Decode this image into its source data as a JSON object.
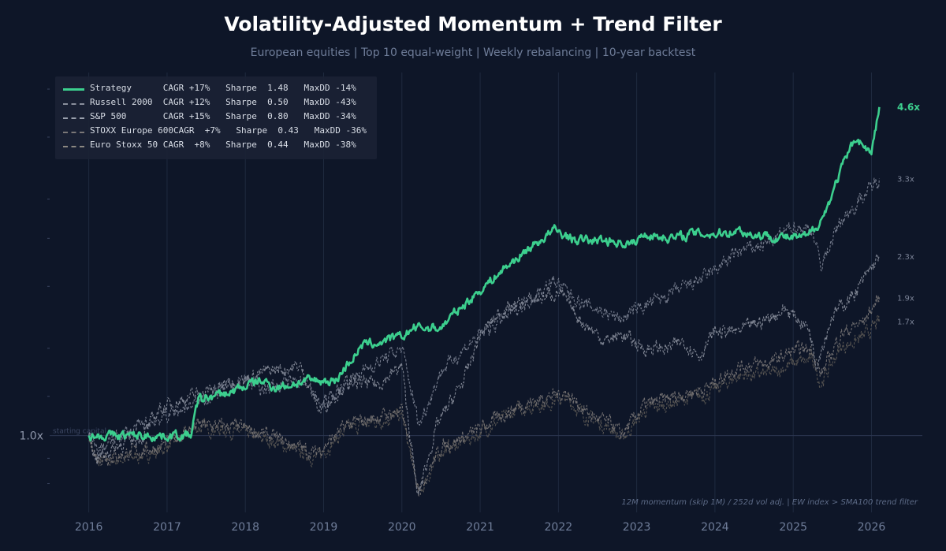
{
  "title": "Volatility-Adjusted Momentum + Trend Filter",
  "subtitle": "European equities  |  Top 10 equal-weight  |  Weekly rebalancing  |  10-year backtest",
  "note": "12M momentum (skip 1M) / 252d vol adj.  |  EW index > SMA100 trend filter",
  "colors": {
    "background": "#0e1628",
    "strategy": "#3ccf8e",
    "grid": "#1f2a3f",
    "muted": "#6f7d99"
  },
  "chart_data": {
    "type": "line",
    "y_scale": "log",
    "xlim": [
      2015.5,
      2026.65
    ],
    "ylim": [
      0.7,
      5.4
    ],
    "x_ticks": [
      2016,
      2017,
      2018,
      2019,
      2020,
      2021,
      2022,
      2023,
      2024,
      2025,
      2026
    ],
    "x_tick_labels": [
      "2016",
      "2017",
      "2018",
      "2019",
      "2020",
      "2021",
      "2022",
      "2023",
      "2024",
      "2025",
      "2026"
    ],
    "baseline": {
      "value": 1.0,
      "label": "1.0x",
      "annotation": "starting capital"
    },
    "series": [
      {
        "name": "Strategy",
        "style": "solid",
        "color": "#3ccf8e",
        "end_label": "4.6x",
        "legend": "Strategy      CAGR +17%   Sharpe  1.48   MaxDD -14%",
        "x": [
          2016.0,
          2017.0,
          2017.3,
          2017.4,
          2017.8,
          2018.0,
          2018.2,
          2018.4,
          2018.8,
          2019.15,
          2019.3,
          2019.5,
          2019.7,
          2020.0,
          2020.15,
          2020.5,
          2020.7,
          2020.9,
          2021.2,
          2021.5,
          2021.8,
          2021.95,
          2022.2,
          2022.7,
          2022.95,
          2023.1,
          2023.5,
          2023.7,
          2024.0,
          2024.3,
          2024.5,
          2024.8,
          2025.0,
          2025.2,
          2025.4,
          2025.6,
          2025.8,
          2026.0,
          2026.1
        ],
        "y": [
          1.0,
          1.0,
          1.0,
          1.18,
          1.22,
          1.26,
          1.29,
          1.25,
          1.29,
          1.29,
          1.39,
          1.52,
          1.54,
          1.58,
          1.65,
          1.65,
          1.78,
          1.9,
          2.1,
          2.3,
          2.5,
          2.6,
          2.48,
          2.47,
          2.43,
          2.55,
          2.5,
          2.56,
          2.55,
          2.6,
          2.54,
          2.52,
          2.5,
          2.52,
          2.8,
          3.4,
          4.0,
          3.7,
          4.6
        ]
      },
      {
        "name": "Russell 2000",
        "style": "dashed",
        "color": "#8a8f9c",
        "end_label": "2.3x",
        "legend": "Russell 2000  CAGR +12%   Sharpe  0.50   MaxDD -43%",
        "x": [
          2016.0,
          2016.1,
          2016.4,
          2016.7,
          2016.9,
          2017.3,
          2017.8,
          2018.3,
          2018.7,
          2018.95,
          2019.3,
          2019.7,
          2020.0,
          2020.2,
          2020.45,
          2020.8,
          2021.0,
          2021.3,
          2021.8,
          2022.0,
          2022.3,
          2022.6,
          2022.8,
          2023.1,
          2023.4,
          2023.6,
          2023.8,
          2024.0,
          2024.3,
          2024.6,
          2024.9,
          2025.2,
          2025.3,
          2025.5,
          2025.8,
          2026.1
        ],
        "y": [
          1.0,
          0.9,
          0.96,
          1.0,
          1.13,
          1.2,
          1.27,
          1.35,
          1.38,
          1.12,
          1.28,
          1.27,
          1.38,
          0.75,
          1.05,
          1.3,
          1.6,
          1.8,
          1.9,
          1.95,
          1.7,
          1.55,
          1.6,
          1.5,
          1.5,
          1.55,
          1.45,
          1.62,
          1.62,
          1.7,
          1.8,
          1.65,
          1.4,
          1.75,
          1.95,
          2.3
        ]
      },
      {
        "name": "S&P 500",
        "style": "dashed",
        "color": "#7c8394",
        "end_label": "3.3x",
        "legend": "S&P 500       CAGR +15%   Sharpe  0.80   MaxDD -34%",
        "x": [
          2016.0,
          2016.1,
          2016.5,
          2016.9,
          2017.5,
          2018.0,
          2018.2,
          2018.8,
          2018.95,
          2019.5,
          2020.0,
          2020.22,
          2020.5,
          2020.9,
          2021.5,
          2021.95,
          2022.3,
          2022.8,
          2023.0,
          2023.5,
          2023.9,
          2024.3,
          2024.7,
          2025.0,
          2025.25,
          2025.35,
          2025.6,
          2025.9,
          2026.1
        ],
        "y": [
          1.0,
          0.93,
          1.02,
          1.08,
          1.19,
          1.3,
          1.25,
          1.3,
          1.15,
          1.35,
          1.5,
          1.05,
          1.35,
          1.55,
          1.82,
          2.05,
          1.85,
          1.72,
          1.8,
          1.95,
          2.1,
          2.35,
          2.45,
          2.65,
          2.6,
          2.2,
          2.7,
          3.05,
          3.3
        ]
      },
      {
        "name": "STOXX Europe 600",
        "style": "dashed",
        "color": "#7a7777",
        "end_label": "1.9x",
        "legend": "STOXX Europe 600CAGR  +7%   Sharpe  0.43   MaxDD -36%",
        "x": [
          2016.0,
          2016.1,
          2016.5,
          2016.9,
          2017.4,
          2017.9,
          2018.3,
          2018.9,
          2019.3,
          2019.8,
          2020.0,
          2020.22,
          2020.5,
          2020.85,
          2021.2,
          2021.5,
          2021.9,
          2022.1,
          2022.4,
          2022.7,
          2022.8,
          2023.1,
          2023.5,
          2023.9,
          2024.3,
          2024.7,
          2025.0,
          2025.25,
          2025.35,
          2025.6,
          2025.9,
          2026.1
        ],
        "y": [
          1.0,
          0.9,
          0.92,
          0.95,
          1.05,
          1.04,
          1.0,
          0.92,
          1.05,
          1.1,
          1.12,
          0.78,
          0.95,
          1.0,
          1.08,
          1.15,
          1.2,
          1.22,
          1.1,
          1.05,
          1.0,
          1.15,
          1.2,
          1.25,
          1.38,
          1.4,
          1.48,
          1.5,
          1.32,
          1.6,
          1.7,
          1.9
        ]
      },
      {
        "name": "Euro Stoxx 50",
        "style": "dashed",
        "color": "#5c5954",
        "end_label": "1.7x",
        "legend": "Euro Stoxx 50 CAGR  +8%   Sharpe  0.44   MaxDD -38%",
        "x": [
          2016.0,
          2016.1,
          2016.5,
          2016.9,
          2017.4,
          2017.9,
          2018.3,
          2018.9,
          2019.3,
          2019.8,
          2020.0,
          2020.22,
          2020.5,
          2020.85,
          2021.2,
          2021.5,
          2021.9,
          2022.1,
          2022.4,
          2022.7,
          2022.8,
          2023.1,
          2023.5,
          2023.9,
          2024.3,
          2024.7,
          2025.0,
          2025.25,
          2025.35,
          2025.6,
          2025.9,
          2026.1
        ],
        "y": [
          1.0,
          0.88,
          0.9,
          0.93,
          1.04,
          1.02,
          0.98,
          0.9,
          1.03,
          1.08,
          1.1,
          0.76,
          0.93,
          0.98,
          1.06,
          1.13,
          1.17,
          1.19,
          1.08,
          1.03,
          0.98,
          1.12,
          1.17,
          1.21,
          1.32,
          1.33,
          1.4,
          1.42,
          1.27,
          1.5,
          1.58,
          1.7
        ]
      }
    ]
  }
}
